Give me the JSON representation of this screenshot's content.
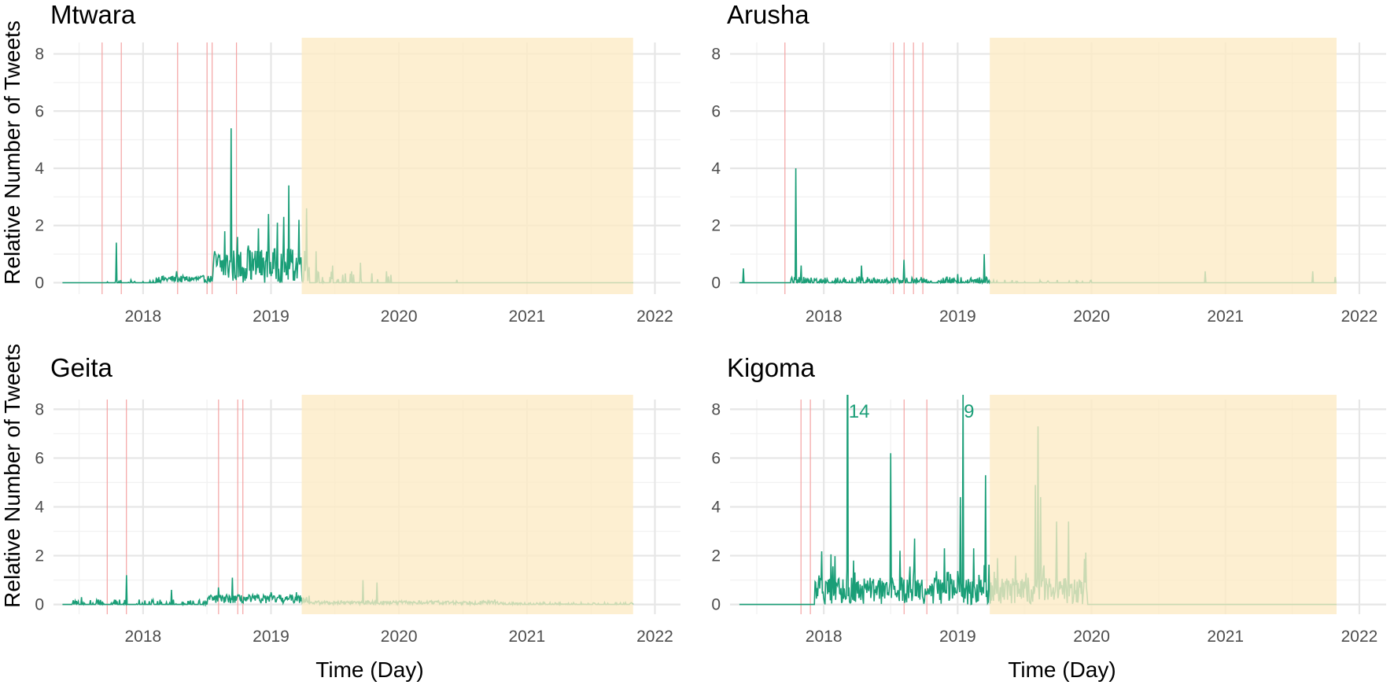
{
  "chart_data": {
    "type": "line",
    "shared": {
      "xlabel": "Time (Day)",
      "ylabel": "Relative Number of Tweets",
      "xlim": [
        2017.3,
        2022.2
      ],
      "ylim": [
        -0.4,
        8.4
      ],
      "x_ticks": [
        2018,
        2019,
        2020,
        2021,
        2022
      ],
      "y_ticks": [
        0,
        2,
        4,
        6,
        8
      ],
      "grid": true,
      "line_color": "#1a9e77",
      "shade_color": "#fdebc4",
      "event_line_color": "#f4a3a3",
      "legend": "none"
    },
    "panels": [
      {
        "title": "Mtwara",
        "x_start": 2017.37,
        "x_end": 2021.83,
        "shade": [
          2019.24,
          2021.83
        ],
        "event_lines": [
          2017.68,
          2017.83,
          2018.27,
          2018.5,
          2018.54,
          2018.73
        ],
        "peaks": [
          {
            "x": 2017.79,
            "y": 1.4
          },
          {
            "x": 2018.26,
            "y": 0.4
          },
          {
            "x": 2018.55,
            "y": 0.6
          },
          {
            "x": 2018.64,
            "y": 1.8
          },
          {
            "x": 2018.69,
            "y": 5.4
          },
          {
            "x": 2018.74,
            "y": 1.6
          },
          {
            "x": 2018.82,
            "y": 1.3
          },
          {
            "x": 2018.9,
            "y": 1.9
          },
          {
            "x": 2018.98,
            "y": 2.4
          },
          {
            "x": 2019.05,
            "y": 2.1
          },
          {
            "x": 2019.1,
            "y": 2.3
          },
          {
            "x": 2019.14,
            "y": 3.4
          },
          {
            "x": 2019.22,
            "y": 2.2
          },
          {
            "x": 2019.28,
            "y": 2.6
          },
          {
            "x": 2019.35,
            "y": 1.1
          },
          {
            "x": 2019.48,
            "y": 0.6
          },
          {
            "x": 2019.7,
            "y": 0.7
          },
          {
            "x": 2019.9,
            "y": 0.4
          },
          {
            "x": 2020.45,
            "y": 0.1
          }
        ],
        "labels": []
      },
      {
        "title": "Arusha",
        "x_start": 2017.37,
        "x_end": 2021.83,
        "shade": [
          2019.24,
          2021.83
        ],
        "event_lines": [
          2017.71,
          2018.52,
          2018.6,
          2018.67,
          2018.74
        ],
        "peaks": [
          {
            "x": 2017.4,
            "y": 0.5
          },
          {
            "x": 2017.79,
            "y": 4.0
          },
          {
            "x": 2017.83,
            "y": 0.6
          },
          {
            "x": 2018.28,
            "y": 0.6
          },
          {
            "x": 2018.6,
            "y": 0.8
          },
          {
            "x": 2019.0,
            "y": 0.3
          },
          {
            "x": 2019.2,
            "y": 1.0
          },
          {
            "x": 2020.85,
            "y": 0.4
          },
          {
            "x": 2021.65,
            "y": 0.4
          },
          {
            "x": 2021.82,
            "y": 0.2
          }
        ],
        "labels": []
      },
      {
        "title": "Geita",
        "x_start": 2017.37,
        "x_end": 2021.83,
        "shade": [
          2019.24,
          2021.83
        ],
        "event_lines": [
          2017.72,
          2017.87,
          2018.59,
          2018.74,
          2018.78
        ],
        "peaks": [
          {
            "x": 2017.52,
            "y": 0.3
          },
          {
            "x": 2017.87,
            "y": 1.2
          },
          {
            "x": 2018.22,
            "y": 0.6
          },
          {
            "x": 2018.59,
            "y": 0.7
          },
          {
            "x": 2018.7,
            "y": 1.1
          },
          {
            "x": 2019.0,
            "y": 0.5
          },
          {
            "x": 2019.2,
            "y": 0.5
          },
          {
            "x": 2019.72,
            "y": 1.0
          },
          {
            "x": 2019.83,
            "y": 0.9
          },
          {
            "x": 2020.75,
            "y": 0.2
          }
        ],
        "labels": []
      },
      {
        "title": "Kigoma",
        "x_start": 2017.37,
        "x_end": 2021.83,
        "shade": [
          2019.24,
          2021.83
        ],
        "event_lines": [
          2017.83,
          2017.9,
          2018.6,
          2018.77
        ],
        "peaks": [
          {
            "x": 2017.94,
            "y": 0.9
          },
          {
            "x": 2018.18,
            "y": 14
          },
          {
            "x": 2018.22,
            "y": 1.8
          },
          {
            "x": 2018.5,
            "y": 6.2
          },
          {
            "x": 2018.57,
            "y": 2.2
          },
          {
            "x": 2018.68,
            "y": 2.7
          },
          {
            "x": 2018.9,
            "y": 2.3
          },
          {
            "x": 2019.02,
            "y": 4.4
          },
          {
            "x": 2019.04,
            "y": 9
          },
          {
            "x": 2019.12,
            "y": 2.3
          },
          {
            "x": 2019.21,
            "y": 5.3
          },
          {
            "x": 2019.3,
            "y": 1.9
          },
          {
            "x": 2019.43,
            "y": 2.0
          },
          {
            "x": 2019.58,
            "y": 4.9
          },
          {
            "x": 2019.6,
            "y": 7.3
          },
          {
            "x": 2019.62,
            "y": 4.4
          },
          {
            "x": 2019.74,
            "y": 3.4
          },
          {
            "x": 2019.83,
            "y": 3.4
          },
          {
            "x": 2019.95,
            "y": 0.9
          }
        ],
        "labels": [
          {
            "text": "14",
            "x": 2018.18
          },
          {
            "text": "9",
            "x": 2019.04
          }
        ]
      }
    ]
  }
}
